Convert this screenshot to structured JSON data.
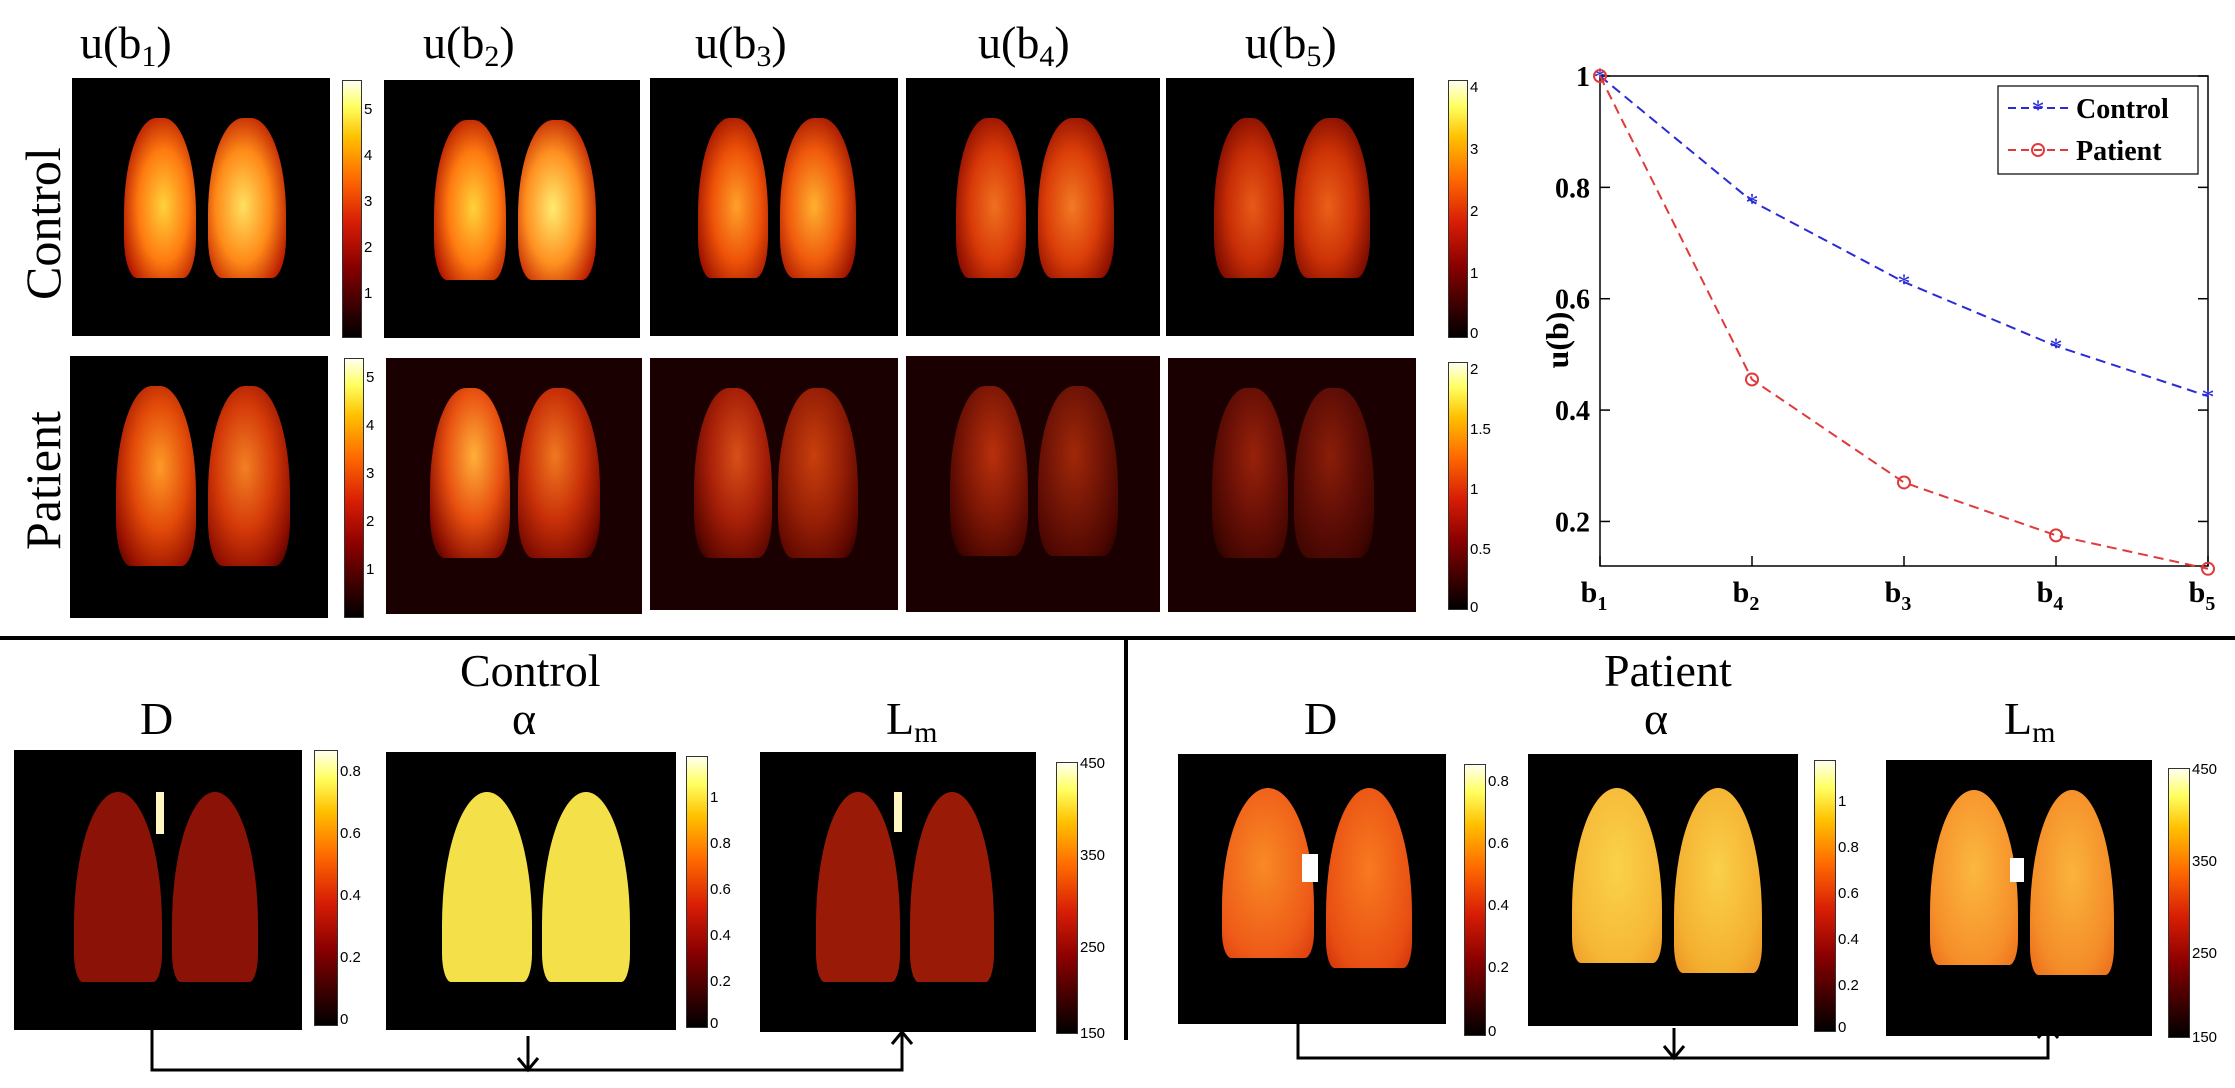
{
  "top_grid": {
    "columns": [
      "u(b",
      "u(b",
      "u(b",
      "u(b",
      "u(b"
    ],
    "column_subs": [
      "1",
      "2",
      "3",
      "4",
      "5"
    ],
    "rows": [
      "Control",
      "Patient"
    ],
    "colorbar_control_left": [
      "5",
      "4",
      "3",
      "2",
      "1"
    ],
    "colorbar_control_right": [
      "4",
      "3",
      "2",
      "1",
      "0"
    ],
    "colorbar_patient_left": [
      "5",
      "4",
      "3",
      "2",
      "1"
    ],
    "colorbar_patient_right": [
      "2",
      "1.5",
      "1",
      "0.5",
      "0"
    ]
  },
  "chart_data": {
    "type": "line",
    "x": [
      "b1",
      "b2",
      "b3",
      "b4",
      "b5"
    ],
    "x_tick_main": [
      "b",
      "b",
      "b",
      "b",
      "b"
    ],
    "x_tick_subs": [
      "1",
      "2",
      "3",
      "4",
      "5"
    ],
    "ylabel": "u(b)",
    "ylim": [
      0.12,
      1.0
    ],
    "y_ticks": [
      "1",
      "0.8",
      "0.6",
      "0.4",
      "0.2"
    ],
    "y_tick_values": [
      1.0,
      0.8,
      0.6,
      0.4,
      0.2
    ],
    "legend_position": "top-right",
    "series": [
      {
        "name": "Control",
        "values": [
          1.0,
          0.775,
          0.63,
          0.515,
          0.425
        ],
        "color": "#2b2bd6",
        "marker": "*"
      },
      {
        "name": "Patient",
        "values": [
          1.0,
          0.455,
          0.27,
          0.175,
          0.115
        ],
        "color": "#e03a3a",
        "marker": "o"
      }
    ]
  },
  "bottom": {
    "control_title": "Control",
    "patient_title": "Patient",
    "map_labels": [
      "D",
      "α",
      "L"
    ],
    "map_subs": [
      "",
      "",
      "m"
    ],
    "colorbar_D": [
      "0.8",
      "0.6",
      "0.4",
      "0.2",
      "0"
    ],
    "colorbar_alpha": [
      "1",
      "0.8",
      "0.6",
      "0.4",
      "0.2",
      "0"
    ],
    "colorbar_Lm": [
      "450",
      "350",
      "250",
      "150"
    ],
    "colors": {
      "control_map_D": "#8a1206",
      "control_map_alpha": "#f4e14a",
      "control_map_Lm": "#9a1a08",
      "patient_map_D": "#f26b1e",
      "patient_map_alpha": "#f8c83a",
      "patient_map_Lm": "#f79a2a"
    }
  }
}
